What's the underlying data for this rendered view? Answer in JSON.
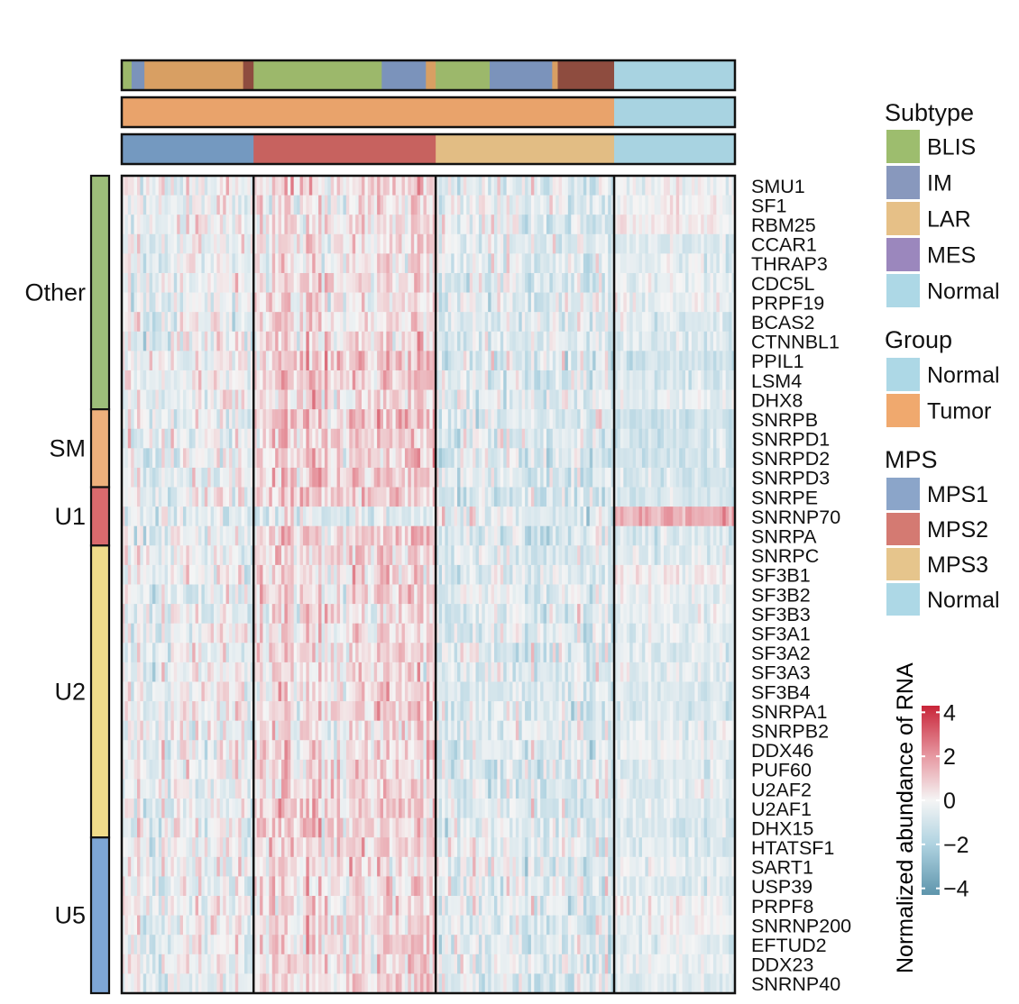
{
  "chart_data": {
    "type": "heatmap",
    "rows": [
      "SMU1",
      "SF1",
      "RBM25",
      "CCAR1",
      "THRAP3",
      "CDC5L",
      "PRPF19",
      "BCAS2",
      "CTNNBL1",
      "PPIL1",
      "LSM4",
      "DHX8",
      "SNRPB",
      "SNRPD1",
      "SNRPD2",
      "SNRPD3",
      "SNRPE",
      "SNRNP70",
      "SNRPA",
      "SNRPC",
      "SF3B1",
      "SF3B2",
      "SF3B3",
      "SF3A1",
      "SF3A2",
      "SF3A3",
      "SF3B4",
      "SNRPA1",
      "SNRPB2",
      "DDX46",
      "PUF60",
      "U2AF2",
      "U2AF1",
      "DHX15",
      "HTATSF1",
      "SART1",
      "USP39",
      "PRPF8",
      "SNRNP200",
      "EFTUD2",
      "DDX23",
      "SNRNP40"
    ],
    "row_groups": [
      {
        "label": "Other",
        "count": 12,
        "color": "#9dbd7a"
      },
      {
        "label": "SM",
        "count": 4,
        "color": "#eeb07c"
      },
      {
        "label": "U1",
        "count": 3,
        "color": "#d96a6d"
      },
      {
        "label": "U2",
        "count": 15,
        "color": "#f0dc8a"
      },
      {
        "label": "U5",
        "count": 8,
        "color": "#7ea6d6"
      }
    ],
    "column_blocks": [
      {
        "mps": "MPS1",
        "group": "Tumor",
        "share": 0.215
      },
      {
        "mps": "MPS2",
        "group": "Tumor",
        "share": 0.297
      },
      {
        "mps": "MPS3",
        "group": "Tumor",
        "share": 0.291
      },
      {
        "mps": "Normal",
        "group": "Normal",
        "share": 0.197
      }
    ],
    "subtype_track": [
      {
        "subtype": "BLIS",
        "share": 0.016
      },
      {
        "subtype": "IM",
        "share": 0.021
      },
      {
        "subtype": "LAR",
        "share": 0.161
      },
      {
        "subtype": "MES",
        "share": 0.017
      },
      {
        "subtype": "BLIS",
        "share": 0.209
      },
      {
        "subtype": "IM",
        "share": 0.072
      },
      {
        "subtype": "LAR",
        "share": 0.016
      },
      {
        "subtype": "BLIS",
        "share": 0.088
      },
      {
        "subtype": "IM",
        "share": 0.102
      },
      {
        "subtype": "LAR",
        "share": 0.009
      },
      {
        "subtype": "MES",
        "share": 0.092
      },
      {
        "subtype": "Normal",
        "share": 0.197
      }
    ],
    "block_mean_values": [
      [
        -0.2,
        0.6,
        -0.4,
        -0.2
      ],
      [
        -0.4,
        0.4,
        -0.4,
        0.0
      ],
      [
        -0.3,
        0.4,
        -0.5,
        0.1
      ],
      [
        -0.3,
        0.5,
        -0.5,
        -0.6
      ],
      [
        -0.3,
        0.4,
        -0.5,
        -0.4
      ],
      [
        -0.3,
        0.6,
        -0.6,
        -0.4
      ],
      [
        -0.3,
        0.4,
        -0.5,
        -0.3
      ],
      [
        -0.3,
        0.5,
        -0.6,
        -0.6
      ],
      [
        -0.4,
        0.5,
        -0.6,
        -0.7
      ],
      [
        -0.2,
        1.0,
        -0.6,
        -1.1
      ],
      [
        -0.3,
        0.9,
        -0.7,
        -0.8
      ],
      [
        -0.3,
        0.5,
        -0.6,
        -0.4
      ],
      [
        -0.3,
        1.1,
        -0.7,
        -1.1
      ],
      [
        -0.3,
        0.8,
        -0.6,
        -1.0
      ],
      [
        -0.4,
        0.9,
        -0.7,
        -1.0
      ],
      [
        -0.3,
        0.8,
        -0.7,
        -0.9
      ],
      [
        -0.3,
        1.1,
        -0.8,
        -0.9
      ],
      [
        -0.7,
        -0.6,
        -0.5,
        1.6
      ],
      [
        -0.3,
        0.9,
        -0.7,
        -0.8
      ],
      [
        -0.3,
        0.7,
        -0.6,
        -0.6
      ],
      [
        -0.3,
        0.6,
        -0.6,
        0.1
      ],
      [
        -0.3,
        0.6,
        -0.5,
        -0.4
      ],
      [
        -0.3,
        0.5,
        -0.6,
        -0.5
      ],
      [
        -0.2,
        0.5,
        -0.6,
        -0.5
      ],
      [
        -0.3,
        0.7,
        -0.6,
        -0.6
      ],
      [
        -0.3,
        0.5,
        -0.5,
        -0.5
      ],
      [
        -0.3,
        0.5,
        -0.6,
        -0.8
      ],
      [
        -0.3,
        0.7,
        -0.6,
        -0.7
      ],
      [
        -0.3,
        0.6,
        -0.5,
        -0.5
      ],
      [
        -0.3,
        0.7,
        -0.7,
        -0.4
      ],
      [
        -0.3,
        0.6,
        -0.5,
        -0.6
      ],
      [
        -0.3,
        0.6,
        -0.5,
        -0.5
      ],
      [
        -0.3,
        0.7,
        -0.6,
        -0.6
      ],
      [
        -0.3,
        0.8,
        -0.6,
        -0.8
      ],
      [
        -0.3,
        0.6,
        -0.5,
        -0.7
      ],
      [
        -0.3,
        0.5,
        -0.5,
        -0.4
      ],
      [
        -0.3,
        0.6,
        -0.5,
        -0.6
      ],
      [
        -0.3,
        0.5,
        -0.5,
        -0.1
      ],
      [
        -0.3,
        0.5,
        -0.5,
        -0.2
      ],
      [
        -0.3,
        0.7,
        -0.6,
        -0.5
      ],
      [
        -0.3,
        0.5,
        -0.5,
        -0.3
      ],
      [
        -0.3,
        0.6,
        -0.6,
        -0.6
      ]
    ],
    "legends": {
      "subtype": {
        "title": "Subtype",
        "items": [
          {
            "label": "BLIS",
            "color": "#9dbd6e"
          },
          {
            "label": "IM",
            "color": "#8898bd"
          },
          {
            "label": "LAR",
            "color": "#e6c087"
          },
          {
            "label": "MES",
            "color": "#9b87bd"
          },
          {
            "label": "Normal",
            "color": "#add8e6"
          }
        ]
      },
      "group": {
        "title": "Group",
        "items": [
          {
            "label": "Normal",
            "color": "#add8e6"
          },
          {
            "label": "Tumor",
            "color": "#f0a96e"
          }
        ]
      },
      "mps": {
        "title": "MPS",
        "items": [
          {
            "label": "MPS1",
            "color": "#8ba5c9"
          },
          {
            "label": "MPS2",
            "color": "#d47a72"
          },
          {
            "label": "MPS3",
            "color": "#e6c58c"
          },
          {
            "label": "Normal",
            "color": "#add8e6"
          }
        ]
      }
    },
    "track_colors": {
      "BLIS": "#9cb86b",
      "IM": "#7b93bb",
      "LAR": "#d89f63",
      "MES": "#8e4c3f",
      "Normal": "#a8d3e1",
      "Tumor": "#e9a36b",
      "MPS1": "#7499c0",
      "MPS2": "#c7625f",
      "MPS3": "#e2bd84"
    },
    "colorbar": {
      "title": "Normalized abundance of RNA",
      "ticks": [
        4,
        2,
        0,
        -2,
        -4
      ],
      "tick_labels": [
        "4",
        "2",
        "0",
        "−2",
        "−4"
      ],
      "range": [
        -4.3,
        4.3
      ],
      "colors": [
        "#5e95ac",
        "#b0d3e1",
        "#f5f5f5",
        "#e79aa3",
        "#c82438"
      ]
    }
  }
}
